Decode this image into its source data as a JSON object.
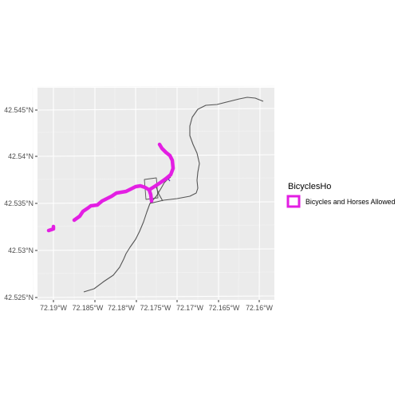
{
  "map": {
    "y_ticks": [
      "42.545°N",
      "42.54°N",
      "42.535°N",
      "42.53°N",
      "42.525°N"
    ],
    "x_ticks": [
      "72.19°W",
      "72.185°W",
      "72.18°W",
      "72.175°W",
      "72.17°W",
      "72.165°W",
      "72.16°W"
    ],
    "legend_title": "BicyclesHo",
    "legend_label": "Bicycles and Horses Allowed",
    "colors": {
      "panel": "#ebebeb",
      "grid": "#ffffff",
      "trail_highlight": "#e31ee3",
      "trail_other": "#555555",
      "accent_line": "#5a2dbb"
    }
  }
}
